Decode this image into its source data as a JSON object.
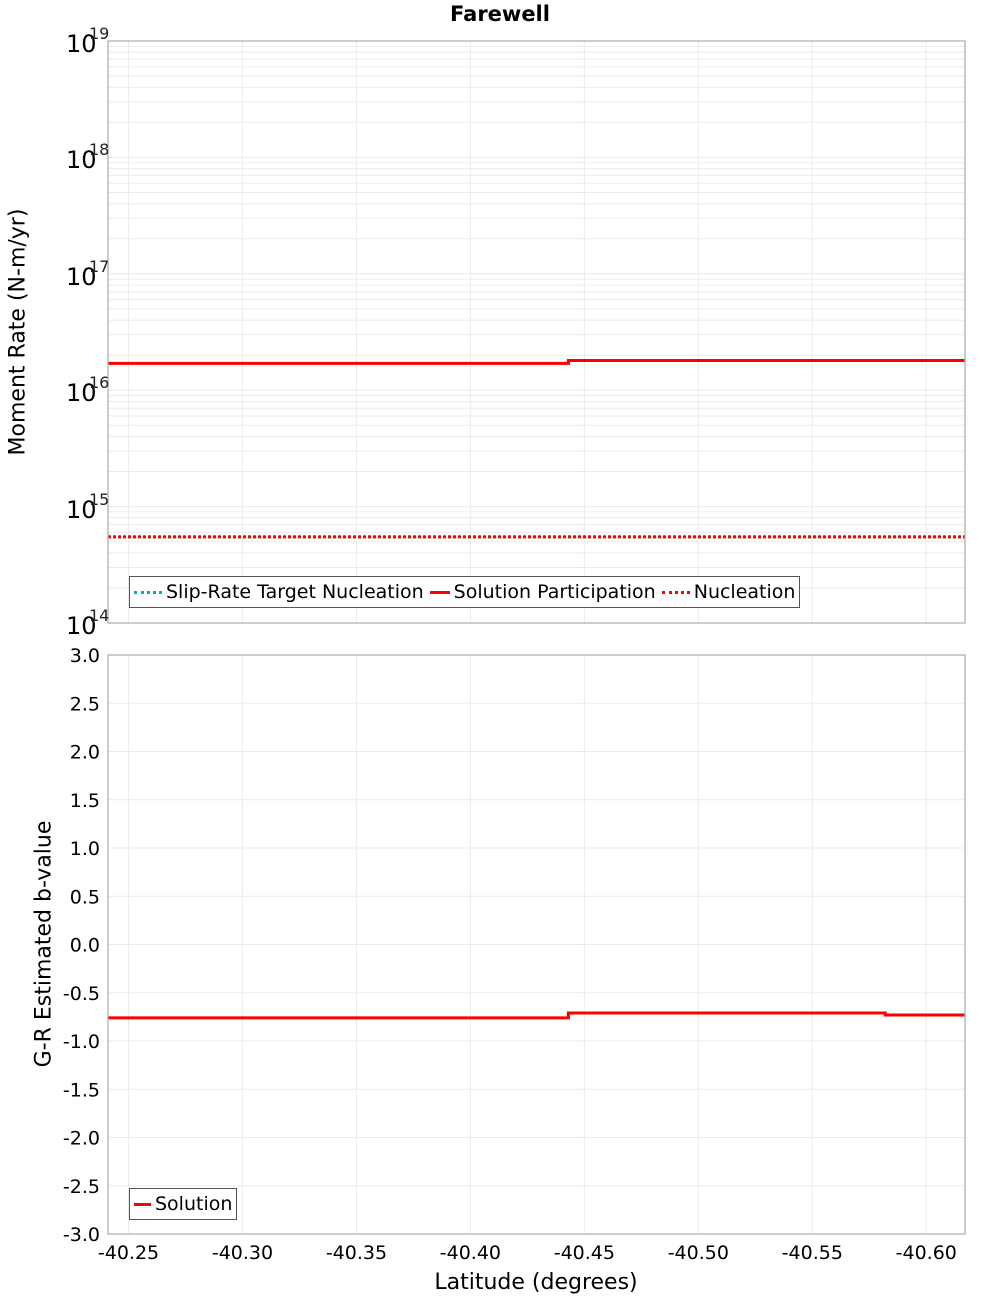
{
  "title": "Farewell",
  "top_plot": {
    "ylabel": "Moment Rate (N-m/yr)",
    "yticks": [
      {
        "base": "10",
        "exp": "19",
        "y": 41
      },
      {
        "base": "10",
        "exp": "18",
        "y": 157
      },
      {
        "base": "10",
        "exp": "17",
        "y": 274
      },
      {
        "base": "10",
        "exp": "16",
        "y": 390
      },
      {
        "base": "10",
        "exp": "15",
        "y": 507
      },
      {
        "base": "10",
        "exp": "14",
        "y": 623
      }
    ],
    "legend": [
      {
        "label": "Slip-Rate Target Nucleation",
        "color": "#00b0c0",
        "style": "dotted"
      },
      {
        "label": "Solution Participation",
        "color": "#ff0000",
        "style": "solid"
      },
      {
        "label": "Nucleation",
        "color": "#ff0000",
        "style": "dotted"
      }
    ]
  },
  "bottom_plot": {
    "ylabel": "G-R Estimated b-value",
    "yticks": [
      "3.0",
      "2.5",
      "2.0",
      "1.5",
      "1.0",
      "0.5",
      "0.0",
      "-0.5",
      "-1.0",
      "-1.5",
      "-2.0",
      "-2.5",
      "-3.0"
    ],
    "legend": [
      {
        "label": "Solution",
        "color": "#ff0000",
        "style": "solid"
      }
    ]
  },
  "xaxis": {
    "label": "Latitude (degrees)",
    "ticks": [
      "-40.25",
      "-40.30",
      "-40.35",
      "-40.40",
      "-40.45",
      "-40.50",
      "-40.55",
      "-40.60"
    ]
  },
  "chart_data": [
    {
      "type": "line",
      "title": "Farewell",
      "xlabel": "Latitude (degrees)",
      "ylabel": "Moment Rate (N-m/yr)",
      "yscale": "log",
      "ylim": [
        100000000000000.0,
        1e+19
      ],
      "xlim": [
        -40.241,
        -40.617
      ],
      "grid": true,
      "legend_position": "lower-left",
      "series": [
        {
          "name": "Slip-Rate Target Nucleation",
          "style": "dotted",
          "color": "#00b0c0",
          "x": [
            -40.241,
            -40.443,
            -40.443,
            -40.617
          ],
          "values": [
            550000000000000.0,
            550000000000000.0,
            550000000000000.0,
            550000000000000.0
          ]
        },
        {
          "name": "Solution Participation",
          "style": "solid",
          "color": "#ff0000",
          "x": [
            -40.241,
            -40.443,
            -40.443,
            -40.617
          ],
          "values": [
            1.7e+16,
            1.7e+16,
            1.8e+16,
            1.8e+16
          ]
        },
        {
          "name": "Nucleation",
          "style": "dotted",
          "color": "#ff0000",
          "x": [
            -40.241,
            -40.443,
            -40.443,
            -40.617
          ],
          "values": [
            550000000000000.0,
            550000000000000.0,
            550000000000000.0,
            550000000000000.0
          ]
        }
      ]
    },
    {
      "type": "line",
      "xlabel": "Latitude (degrees)",
      "ylabel": "G-R Estimated b-value",
      "ylim": [
        -3.0,
        3.0
      ],
      "xlim": [
        -40.241,
        -40.617
      ],
      "grid": true,
      "legend_position": "lower-left",
      "series": [
        {
          "name": "Solution",
          "style": "solid",
          "color": "#ff0000",
          "x": [
            -40.241,
            -40.443,
            -40.443,
            -40.582,
            -40.582,
            -40.617
          ],
          "values": [
            -0.76,
            -0.76,
            -0.71,
            -0.71,
            -0.73,
            -0.73
          ]
        }
      ]
    }
  ]
}
